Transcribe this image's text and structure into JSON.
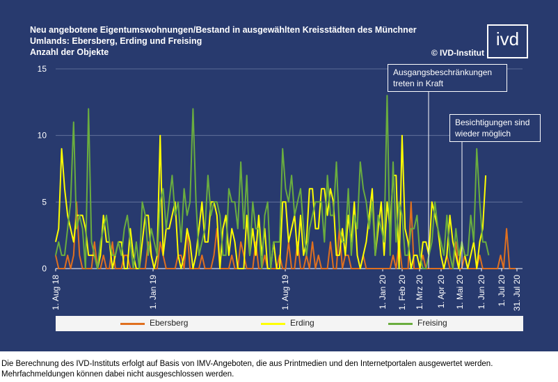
{
  "header": {
    "title_line1": "Neu angebotene Eigentumswohnungen/Bestand in ausgewählten Kreisstädten des Münchner",
    "title_line2": "Umlands:  Ebersberg, Erding und Freising",
    "title_line3": "Anzahl der Objekte",
    "copyright": "© IVD-Institut",
    "logo_text": "ivd"
  },
  "annotations": {
    "lockdown": "Ausgangsbeschränkungen treten in Kraft",
    "viewings": "Besichtigungen sind wieder möglich"
  },
  "footnote": "Die Berechnung des IVD-Instituts erfolgt auf Basis von IMV-Angeboten, die aus Printmedien und den Internetportalen ausgewertet werden. Mehrfachmeldungen können dabei nicht ausgeschlossen werden.",
  "colors": {
    "background": "#283a6e",
    "ebersberg": "#e0701f",
    "erding": "#ffff00",
    "freising": "#6aad3f"
  },
  "chart_data": {
    "type": "line",
    "ylim": [
      0,
      15
    ],
    "yticks": [
      "0",
      "5",
      "10",
      "15"
    ],
    "grid": true,
    "legend_position": "bottom",
    "xticks": [
      "1. Aug 18",
      "1. Jan 19",
      "1. Aug 19",
      "1. Jan 20",
      "1. Feb 20",
      "1. Mrz 20",
      "1. Apr 20",
      "1. Mai 20",
      "1. Jun 20",
      "1. Jul 20",
      "31. Jul 20"
    ],
    "series": [
      {
        "name": "Ebersberg",
        "color": "#e0701f",
        "values": [
          1,
          0,
          0,
          0,
          1,
          0,
          1,
          5,
          1,
          0,
          0,
          0,
          0,
          2,
          0,
          0,
          1,
          0,
          0,
          2,
          0,
          0,
          0,
          1,
          1,
          0,
          0,
          0,
          0,
          0,
          0,
          2,
          1,
          0,
          0,
          2,
          1,
          0,
          0,
          0,
          0,
          1,
          1,
          0,
          3,
          0,
          0,
          0,
          0,
          1,
          0,
          0,
          0,
          1,
          3,
          0,
          0,
          0,
          0,
          1,
          0,
          0,
          2,
          1,
          0,
          0,
          0,
          2,
          0,
          0,
          1,
          0,
          0,
          0,
          0,
          1,
          0,
          0,
          2,
          0,
          0,
          2,
          0,
          0,
          1,
          0,
          2,
          0,
          1,
          0,
          0,
          0,
          2,
          0,
          0,
          3,
          0,
          1,
          1,
          0,
          0,
          0,
          0,
          1,
          0,
          0,
          0,
          0,
          0,
          0,
          0,
          0,
          0,
          1,
          0,
          2,
          0,
          0,
          0,
          5,
          0,
          0,
          0,
          1,
          0,
          0,
          0,
          0,
          0,
          0,
          0,
          1,
          0,
          0,
          2,
          0,
          0,
          1,
          0,
          0,
          0,
          0,
          1,
          0,
          0,
          0,
          0,
          0,
          0,
          1,
          0,
          3,
          0,
          0,
          0
        ]
      },
      {
        "name": "Erding",
        "color": "#ffff00",
        "values": [
          2,
          3,
          9,
          6,
          4,
          3,
          2,
          4,
          4,
          4,
          3,
          1,
          1,
          1,
          0,
          1,
          4,
          2,
          2,
          0,
          1,
          2,
          2,
          0,
          0,
          3,
          1,
          0,
          0,
          2,
          4,
          4,
          1,
          0,
          1,
          10,
          1,
          3,
          3,
          4,
          5,
          1,
          0,
          1,
          3,
          2,
          0,
          1,
          3,
          5,
          2,
          2,
          5,
          5,
          4,
          0,
          3,
          4,
          1,
          3,
          2,
          0,
          0,
          0,
          4,
          1,
          3,
          1,
          4,
          1,
          3,
          0,
          0,
          2,
          0,
          0,
          5,
          5,
          2,
          3,
          4,
          1,
          4,
          1,
          2,
          6,
          6,
          3,
          3,
          6,
          6,
          4,
          6,
          5,
          1,
          1,
          3,
          1,
          4,
          2,
          5,
          1,
          0,
          1,
          2,
          4,
          6,
          1,
          3,
          5,
          1,
          5,
          3,
          7,
          7,
          0,
          10,
          3,
          2,
          0,
          1,
          1,
          0,
          2,
          2,
          1,
          5,
          4,
          3,
          1,
          0,
          1,
          4,
          2,
          1,
          0,
          2,
          1,
          0,
          1,
          2,
          0,
          2,
          3,
          7
        ]
      },
      {
        "name": "Freising",
        "color": "#6aad3f",
        "values": [
          1,
          2,
          1,
          1,
          3,
          5,
          11,
          3,
          4,
          3,
          0,
          12,
          2,
          1,
          0,
          2,
          3,
          4,
          2,
          1,
          1,
          2,
          1,
          3,
          4,
          2,
          0,
          2,
          0,
          5,
          4,
          1,
          3,
          2,
          1,
          5,
          6,
          3,
          5,
          7,
          4,
          5,
          2,
          6,
          4,
          5,
          12,
          5,
          1,
          2,
          3,
          7,
          4,
          5,
          5,
          4,
          1,
          1,
          6,
          5,
          5,
          3,
          8,
          3,
          7,
          1,
          5,
          3,
          3,
          0,
          4,
          5,
          0,
          2,
          2,
          2,
          9,
          6,
          5,
          7,
          4,
          5,
          6,
          3,
          1,
          3,
          4,
          5,
          5,
          5,
          2,
          7,
          4,
          4,
          8,
          3,
          2,
          2,
          6,
          1,
          4,
          3,
          8,
          6,
          5,
          3,
          5,
          1,
          4,
          3,
          2,
          13,
          1,
          8,
          2,
          5,
          4,
          1,
          1,
          3,
          3,
          4,
          1,
          0,
          0,
          1,
          2,
          5,
          3,
          2,
          1,
          4,
          1,
          0,
          3,
          1,
          2,
          1,
          1,
          4,
          2,
          9,
          5,
          2,
          2,
          1
        ]
      }
    ]
  }
}
